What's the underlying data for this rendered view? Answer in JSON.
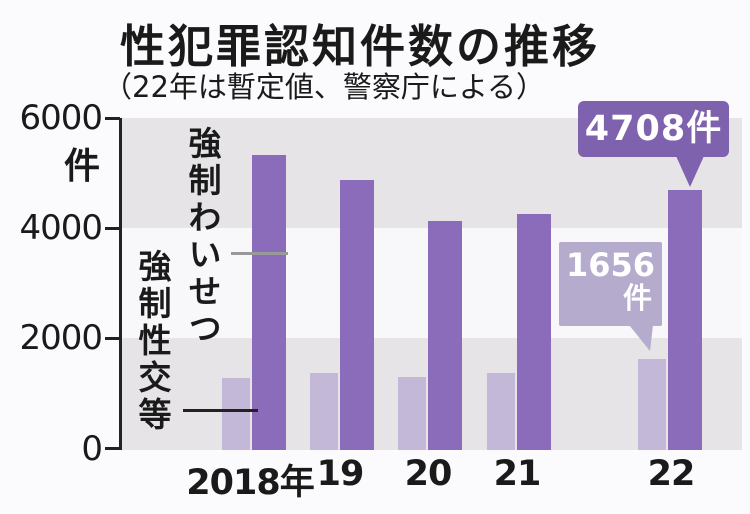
{
  "figure": {
    "title": "性犯罪認知件数の推移",
    "subtitle": "（22年は暫定値、警察庁による）",
    "y_axis": {
      "unit": "件",
      "tick_labels": [
        "6000",
        "4000",
        "2000",
        "0"
      ]
    },
    "x_axis": {
      "labels": [
        "2018年",
        "19",
        "20",
        "21",
        "22"
      ]
    },
    "series_labels": {
      "forcible_indecency": "強制わいせつ",
      "forcible_intercourse": "強制性交等"
    },
    "callouts": {
      "dark": {
        "text": "4708件"
      },
      "light": {
        "line1": "1656",
        "line2": "件"
      }
    }
  },
  "colors": {
    "bar_dark": "#8a6cba",
    "bar_light": "#c3b8d8",
    "callout_dark_bg": "#7e62ad",
    "callout_light_bg": "#b5abcd",
    "band_gray": "#e6e4e7",
    "band_white": "#f8f7f9",
    "axis": "#222222",
    "text": "#1a1a1a"
  },
  "chart_data": {
    "type": "bar",
    "title": "性犯罪認知件数の推移",
    "subtitle": "（22年は暫定値、警察庁による）",
    "unit": "件",
    "categories": [
      "2018年",
      "19",
      "20",
      "21",
      "22"
    ],
    "series": [
      {
        "name": "強制わいせつ",
        "color": "#8a6cba",
        "values": [
          5340,
          4900,
          4154,
          4283,
          4708
        ]
      },
      {
        "name": "強制性交等",
        "color": "#c3b8d8",
        "values": [
          1307,
          1405,
          1332,
          1388,
          1656
        ]
      }
    ],
    "ylim": [
      0,
      6000
    ],
    "yticks": [
      0,
      2000,
      4000,
      6000
    ],
    "grid": "banded-horizontal",
    "legend": "vertical-inline-labels",
    "annotations": [
      {
        "series": "強制わいせつ",
        "category": "22",
        "text": "4708件"
      },
      {
        "series": "強制性交等",
        "category": "22",
        "text": "1656件"
      }
    ]
  }
}
